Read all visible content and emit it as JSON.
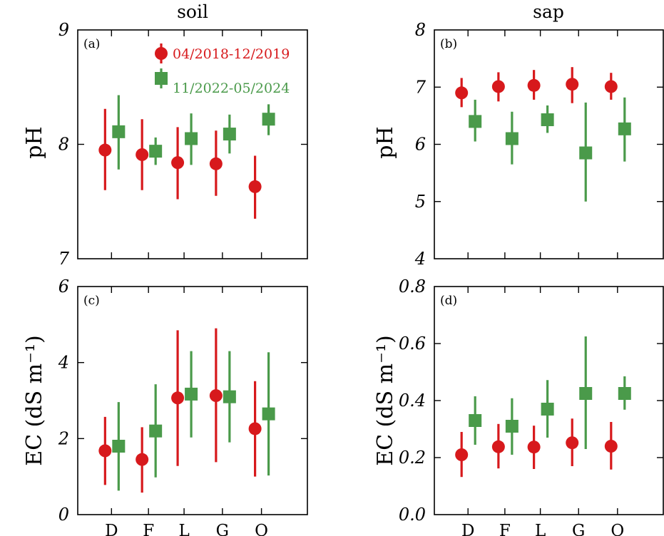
{
  "colors": {
    "red": "#d7191c",
    "green": "#4a9a4a"
  },
  "column_titles": {
    "left": "soil",
    "right": "sap"
  },
  "categories": [
    "D",
    "F",
    "L",
    "G",
    "O"
  ],
  "legend": {
    "series1": "04/2018-12/2019",
    "series2": "11/2022-05/2024"
  },
  "chart_data": [
    {
      "type": "scatter",
      "panel_label": "(a)",
      "ylabel": "pH",
      "ylim": [
        7,
        9
      ],
      "yticks": [
        "7",
        "8",
        "9"
      ],
      "tick_values": [
        7,
        8,
        9
      ],
      "categories": [
        "D",
        "F",
        "L",
        "G",
        "O"
      ],
      "series": [
        {
          "name": "04/2018-12/2019",
          "marker": "circle",
          "values": [
            7.95,
            7.91,
            7.84,
            7.83,
            7.63
          ],
          "err_low": [
            7.6,
            7.6,
            7.52,
            7.55,
            7.35
          ],
          "err_high": [
            8.31,
            8.22,
            8.15,
            8.12,
            7.9
          ]
        },
        {
          "name": "11/2022-05/2024",
          "marker": "square",
          "values": [
            8.11,
            7.94,
            8.05,
            8.09,
            8.22
          ],
          "err_low": [
            7.78,
            7.82,
            7.82,
            7.92,
            8.08
          ],
          "err_high": [
            8.43,
            8.06,
            8.27,
            8.26,
            8.35
          ]
        }
      ],
      "show_legend": true
    },
    {
      "type": "scatter",
      "panel_label": "(b)",
      "ylabel": "pH",
      "ylim": [
        4,
        8
      ],
      "yticks": [
        "4",
        "5",
        "6",
        "7",
        "8"
      ],
      "tick_values": [
        4,
        5,
        6,
        7,
        8
      ],
      "categories": [
        "D",
        "F",
        "L",
        "G",
        "O"
      ],
      "series": [
        {
          "name": "04/2018-12/2019",
          "marker": "circle",
          "values": [
            6.9,
            7.01,
            7.03,
            7.05,
            7.01
          ],
          "err_low": [
            6.65,
            6.75,
            6.78,
            6.72,
            6.78
          ],
          "err_high": [
            7.16,
            7.26,
            7.3,
            7.35,
            7.25
          ]
        },
        {
          "name": "11/2022-05/2024",
          "marker": "square",
          "values": [
            6.4,
            6.1,
            6.43,
            5.85,
            6.27
          ],
          "err_low": [
            6.05,
            5.65,
            6.2,
            5.0,
            5.7
          ],
          "err_high": [
            6.78,
            6.57,
            6.68,
            6.73,
            6.82
          ]
        }
      ],
      "show_legend": false
    },
    {
      "type": "scatter",
      "panel_label": "(c)",
      "ylabel": "EC (dS m⁻¹)",
      "ylim": [
        0,
        6
      ],
      "yticks": [
        "0",
        "2",
        "4",
        "6"
      ],
      "tick_values": [
        0,
        2,
        4,
        6
      ],
      "categories": [
        "D",
        "F",
        "L",
        "G",
        "O"
      ],
      "xticks_shown": true,
      "series": [
        {
          "name": "04/2018-12/2019",
          "marker": "circle",
          "values": [
            1.68,
            1.45,
            3.07,
            3.13,
            2.26
          ],
          "err_low": [
            0.78,
            0.58,
            1.28,
            1.38,
            1.0
          ],
          "err_high": [
            2.57,
            2.3,
            4.85,
            4.9,
            3.51
          ]
        },
        {
          "name": "11/2022-05/2024",
          "marker": "square",
          "values": [
            1.8,
            2.2,
            3.17,
            3.1,
            2.65
          ],
          "err_low": [
            0.63,
            0.98,
            2.03,
            1.9,
            1.03
          ],
          "err_high": [
            2.96,
            3.43,
            4.3,
            4.3,
            4.27
          ]
        }
      ],
      "show_legend": false
    },
    {
      "type": "scatter",
      "panel_label": "(d)",
      "ylabel": "EC (dS m⁻¹)",
      "ylim": [
        0,
        0.8
      ],
      "yticks": [
        "0.0",
        "0.2",
        "0.4",
        "0.6",
        "0.8"
      ],
      "tick_values": [
        0,
        0.2,
        0.4,
        0.6,
        0.8
      ],
      "categories": [
        "D",
        "F",
        "L",
        "G",
        "O"
      ],
      "xticks_shown": true,
      "series": [
        {
          "name": "04/2018-12/2019",
          "marker": "circle",
          "values": [
            0.21,
            0.238,
            0.237,
            0.252,
            0.24
          ],
          "err_low": [
            0.132,
            0.162,
            0.16,
            0.17,
            0.158
          ],
          "err_high": [
            0.29,
            0.318,
            0.312,
            0.337,
            0.325
          ]
        },
        {
          "name": "11/2022-05/2024",
          "marker": "square",
          "values": [
            0.33,
            0.31,
            0.37,
            0.425,
            0.425
          ],
          "err_low": [
            0.245,
            0.21,
            0.27,
            0.23,
            0.368
          ],
          "err_high": [
            0.415,
            0.408,
            0.472,
            0.625,
            0.485
          ]
        }
      ],
      "show_legend": false
    }
  ]
}
